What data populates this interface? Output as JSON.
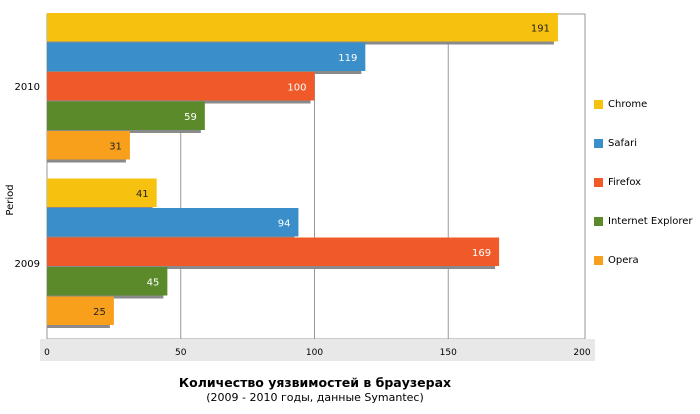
{
  "chart_data": {
    "type": "bar",
    "orientation": "horizontal",
    "title": "Количество уязвимостей в браузерах",
    "subtitle": "(2009 - 2010 годы, данные Symantec)",
    "ylabel": "Period",
    "xlabel": "",
    "categories": [
      "2010",
      "2009"
    ],
    "series": [
      {
        "name": "Chrome",
        "color": "#f7c20f",
        "values": [
          191,
          41
        ]
      },
      {
        "name": "Safari",
        "color": "#3a8fcb",
        "values": [
          119,
          94
        ]
      },
      {
        "name": "Firefox",
        "color": "#f05a28",
        "values": [
          100,
          169
        ]
      },
      {
        "name": "Internet Explorer",
        "color": "#5b8a2b",
        "values": [
          59,
          45
        ]
      },
      {
        "name": "Opera",
        "color": "#f8a01c",
        "values": [
          31,
          25
        ]
      }
    ],
    "xlim": [
      0,
      200
    ],
    "xticks": [
      0,
      50,
      100,
      150,
      200
    ],
    "grid": true,
    "legend_position": "right",
    "data_labels": true
  }
}
